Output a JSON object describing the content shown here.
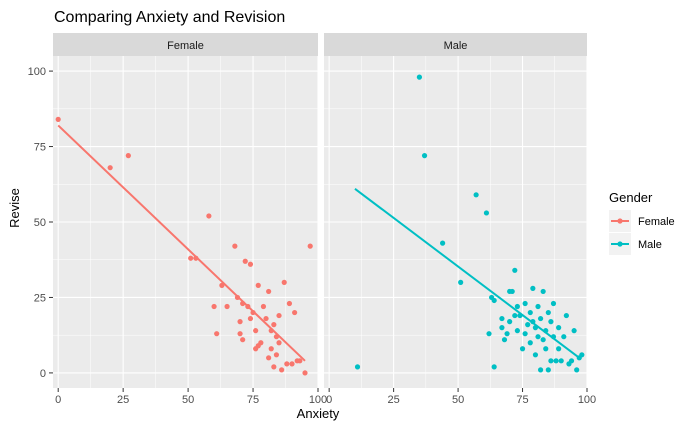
{
  "chart_data": {
    "type": "scatter",
    "title": "Comparing Anxiety and Revision",
    "xlabel": "Anxiety",
    "ylabel": "Revise",
    "xlim": [
      -2,
      100
    ],
    "ylim": [
      -5,
      105
    ],
    "x_ticks": [
      0,
      25,
      50,
      75,
      100
    ],
    "y_ticks": [
      0,
      25,
      50,
      75,
      100
    ],
    "x_tick_labels": [
      "0",
      "25",
      "50",
      "75",
      "100"
    ],
    "y_tick_labels": [
      "0",
      "25",
      "50",
      "75",
      "100"
    ],
    "grid": true,
    "legend": {
      "title": "Gender",
      "placement": "right",
      "entries": [
        "Female",
        "Male"
      ]
    },
    "facets": [
      {
        "label": "Female",
        "color": "#F8766D",
        "trend": {
          "x": [
            0,
            95
          ],
          "y": [
            82,
            4
          ]
        },
        "points": [
          {
            "x": 0,
            "y": 84
          },
          {
            "x": 20,
            "y": 68
          },
          {
            "x": 27,
            "y": 72
          },
          {
            "x": 51,
            "y": 38
          },
          {
            "x": 53,
            "y": 38
          },
          {
            "x": 58,
            "y": 52
          },
          {
            "x": 60,
            "y": 22
          },
          {
            "x": 61,
            "y": 13
          },
          {
            "x": 63,
            "y": 29
          },
          {
            "x": 65,
            "y": 22
          },
          {
            "x": 68,
            "y": 42
          },
          {
            "x": 69,
            "y": 25
          },
          {
            "x": 70,
            "y": 17
          },
          {
            "x": 70,
            "y": 13
          },
          {
            "x": 71,
            "y": 11
          },
          {
            "x": 71,
            "y": 23
          },
          {
            "x": 72,
            "y": 37
          },
          {
            "x": 73,
            "y": 22
          },
          {
            "x": 74,
            "y": 36
          },
          {
            "x": 74,
            "y": 18
          },
          {
            "x": 75,
            "y": 20
          },
          {
            "x": 76,
            "y": 14
          },
          {
            "x": 76,
            "y": 8
          },
          {
            "x": 77,
            "y": 29
          },
          {
            "x": 77,
            "y": 9
          },
          {
            "x": 78,
            "y": 10
          },
          {
            "x": 79,
            "y": 22
          },
          {
            "x": 80,
            "y": 18
          },
          {
            "x": 81,
            "y": 5
          },
          {
            "x": 81,
            "y": 27
          },
          {
            "x": 82,
            "y": 14
          },
          {
            "x": 82,
            "y": 8
          },
          {
            "x": 83,
            "y": 16
          },
          {
            "x": 83,
            "y": 2
          },
          {
            "x": 84,
            "y": 6
          },
          {
            "x": 84,
            "y": 12
          },
          {
            "x": 85,
            "y": 19
          },
          {
            "x": 85,
            "y": 10
          },
          {
            "x": 86,
            "y": 1
          },
          {
            "x": 87,
            "y": 30
          },
          {
            "x": 88,
            "y": 3
          },
          {
            "x": 89,
            "y": 23
          },
          {
            "x": 90,
            "y": 3
          },
          {
            "x": 91,
            "y": 20
          },
          {
            "x": 92,
            "y": 4
          },
          {
            "x": 93,
            "y": 4
          },
          {
            "x": 95,
            "y": 0
          },
          {
            "x": 97,
            "y": 42
          }
        ]
      },
      {
        "label": "Male",
        "color": "#00BFC4",
        "trend": {
          "x": [
            10,
            97
          ],
          "y": [
            61,
            5
          ]
        },
        "points": [
          {
            "x": 11,
            "y": 2
          },
          {
            "x": 35,
            "y": 98
          },
          {
            "x": 37,
            "y": 72
          },
          {
            "x": 44,
            "y": 43
          },
          {
            "x": 51,
            "y": 30
          },
          {
            "x": 57,
            "y": 59
          },
          {
            "x": 61,
            "y": 53
          },
          {
            "x": 62,
            "y": 13
          },
          {
            "x": 63,
            "y": 25
          },
          {
            "x": 64,
            "y": 24
          },
          {
            "x": 64,
            "y": 2
          },
          {
            "x": 67,
            "y": 15
          },
          {
            "x": 67,
            "y": 18
          },
          {
            "x": 68,
            "y": 11
          },
          {
            "x": 69,
            "y": 13
          },
          {
            "x": 70,
            "y": 17
          },
          {
            "x": 70,
            "y": 27
          },
          {
            "x": 71,
            "y": 27
          },
          {
            "x": 72,
            "y": 19
          },
          {
            "x": 72,
            "y": 34
          },
          {
            "x": 73,
            "y": 22
          },
          {
            "x": 73,
            "y": 14
          },
          {
            "x": 74,
            "y": 19
          },
          {
            "x": 75,
            "y": 8
          },
          {
            "x": 76,
            "y": 13
          },
          {
            "x": 76,
            "y": 23
          },
          {
            "x": 77,
            "y": 16
          },
          {
            "x": 78,
            "y": 10
          },
          {
            "x": 78,
            "y": 20
          },
          {
            "x": 79,
            "y": 17
          },
          {
            "x": 79,
            "y": 28
          },
          {
            "x": 80,
            "y": 15
          },
          {
            "x": 80,
            "y": 6
          },
          {
            "x": 81,
            "y": 12
          },
          {
            "x": 81,
            "y": 22
          },
          {
            "x": 82,
            "y": 1
          },
          {
            "x": 82,
            "y": 18
          },
          {
            "x": 83,
            "y": 11
          },
          {
            "x": 83,
            "y": 27
          },
          {
            "x": 84,
            "y": 14
          },
          {
            "x": 84,
            "y": 8
          },
          {
            "x": 85,
            "y": 1
          },
          {
            "x": 85,
            "y": 20
          },
          {
            "x": 86,
            "y": 17
          },
          {
            "x": 86,
            "y": 4
          },
          {
            "x": 87,
            "y": 12
          },
          {
            "x": 87,
            "y": 23
          },
          {
            "x": 88,
            "y": 4
          },
          {
            "x": 89,
            "y": 15
          },
          {
            "x": 89,
            "y": 8
          },
          {
            "x": 90,
            "y": 4
          },
          {
            "x": 91,
            "y": 12
          },
          {
            "x": 92,
            "y": 19
          },
          {
            "x": 93,
            "y": 3
          },
          {
            "x": 94,
            "y": 4
          },
          {
            "x": 95,
            "y": 14
          },
          {
            "x": 96,
            "y": 1
          },
          {
            "x": 97,
            "y": 5
          },
          {
            "x": 98,
            "y": 6
          }
        ]
      }
    ]
  }
}
